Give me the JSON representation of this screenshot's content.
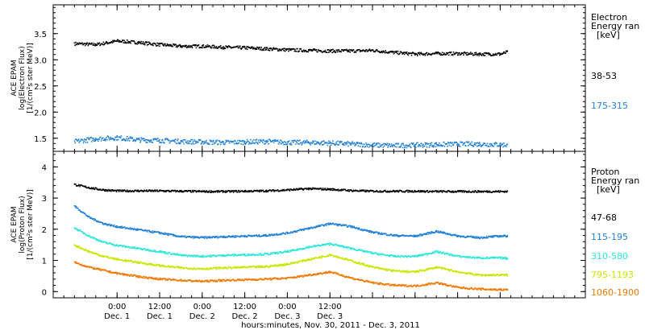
{
  "chart_data": [
    {
      "type": "scatter",
      "ylabel_lines": [
        "ACE EPAM",
        "log(Electron Flux)",
        "[1/(cm²s ster MeV)]"
      ],
      "ylim": [
        1.25,
        4.05
      ],
      "yticks": [
        1.5,
        2.0,
        2.5,
        3.0,
        3.5
      ],
      "yticklabels": [
        "1.5",
        "2.0",
        "2.5",
        "3.0",
        "3.5"
      ],
      "legend_title": [
        "Electron",
        "Energy ran",
        "[keV]"
      ],
      "series": [
        {
          "name": "38-53",
          "color": "#000000",
          "x": [
            -12,
            -6,
            0,
            6,
            12,
            18,
            24,
            30,
            36,
            42,
            48,
            54,
            60,
            66,
            72,
            78,
            84,
            90,
            96,
            102,
            108,
            110
          ],
          "y": [
            3.32,
            3.3,
            3.37,
            3.34,
            3.3,
            3.27,
            3.27,
            3.25,
            3.24,
            3.22,
            3.2,
            3.19,
            3.18,
            3.18,
            3.19,
            3.15,
            3.12,
            3.13,
            3.13,
            3.12,
            3.12,
            3.16
          ]
        },
        {
          "name": "175-315",
          "color": "#1f7fd6",
          "x": [
            -12,
            -6,
            0,
            6,
            12,
            18,
            24,
            30,
            36,
            42,
            48,
            54,
            60,
            66,
            72,
            78,
            84,
            90,
            96,
            102,
            108,
            110
          ],
          "y": [
            1.45,
            1.5,
            1.52,
            1.48,
            1.47,
            1.45,
            1.44,
            1.43,
            1.44,
            1.45,
            1.43,
            1.43,
            1.42,
            1.4,
            1.38,
            1.37,
            1.38,
            1.39,
            1.4,
            1.4,
            1.39,
            1.38
          ]
        }
      ]
    },
    {
      "type": "scatter",
      "ylabel_lines": [
        "ACE EPAM",
        "log(Proton Flux)",
        "[1/(cm²s ster MeV)]"
      ],
      "ylim": [
        -0.2,
        4.5
      ],
      "yticks": [
        0,
        1,
        2,
        3,
        4
      ],
      "yticklabels": [
        "0",
        "1",
        "2",
        "3",
        "4"
      ],
      "legend_title": [
        "Proton",
        "Energy ran",
        "[keV]"
      ],
      "series": [
        {
          "name": "47-68",
          "color": "#000000",
          "x": [
            -12,
            -8,
            -4,
            0,
            6,
            12,
            18,
            24,
            30,
            36,
            42,
            48,
            54,
            60,
            66,
            72,
            78,
            84,
            90,
            96,
            102,
            108,
            110
          ],
          "y": [
            3.45,
            3.35,
            3.28,
            3.25,
            3.25,
            3.25,
            3.24,
            3.23,
            3.23,
            3.24,
            3.25,
            3.28,
            3.32,
            3.3,
            3.26,
            3.24,
            3.24,
            3.24,
            3.23,
            3.23,
            3.23,
            3.23,
            3.23
          ]
        },
        {
          "name": "115-195",
          "color": "#1f7fd6",
          "x": [
            -12,
            -8,
            -4,
            0,
            6,
            12,
            18,
            24,
            30,
            36,
            42,
            48,
            54,
            60,
            66,
            72,
            78,
            84,
            90,
            96,
            102,
            108,
            110
          ],
          "y": [
            2.75,
            2.4,
            2.2,
            2.1,
            2.0,
            1.9,
            1.78,
            1.75,
            1.78,
            1.8,
            1.82,
            1.9,
            2.05,
            2.2,
            2.1,
            1.92,
            1.82,
            1.8,
            1.95,
            1.8,
            1.75,
            1.8,
            1.8
          ]
        },
        {
          "name": "310-580",
          "color": "#2ee6d8",
          "x": [
            -12,
            -8,
            -4,
            0,
            6,
            12,
            18,
            24,
            30,
            36,
            42,
            48,
            54,
            60,
            66,
            72,
            78,
            84,
            90,
            96,
            102,
            108,
            110
          ],
          "y": [
            2.05,
            1.8,
            1.6,
            1.5,
            1.4,
            1.3,
            1.18,
            1.15,
            1.18,
            1.2,
            1.22,
            1.3,
            1.45,
            1.55,
            1.4,
            1.25,
            1.15,
            1.15,
            1.3,
            1.15,
            1.1,
            1.1,
            1.08
          ]
        },
        {
          "name": "795-1193",
          "color": "#c8e600",
          "x": [
            -12,
            -8,
            -4,
            0,
            6,
            12,
            18,
            24,
            30,
            36,
            42,
            48,
            54,
            60,
            66,
            72,
            78,
            84,
            90,
            96,
            102,
            108,
            110
          ],
          "y": [
            1.5,
            1.3,
            1.15,
            1.05,
            0.95,
            0.85,
            0.78,
            0.75,
            0.78,
            0.8,
            0.82,
            0.9,
            1.05,
            1.2,
            1.0,
            0.8,
            0.68,
            0.65,
            0.8,
            0.65,
            0.55,
            0.55,
            0.55
          ]
        },
        {
          "name": "1060-1900",
          "color": "#f07800",
          "x": [
            -12,
            -8,
            -4,
            0,
            6,
            12,
            18,
            24,
            30,
            36,
            42,
            48,
            54,
            60,
            66,
            72,
            78,
            84,
            90,
            96,
            102,
            108,
            110
          ],
          "y": [
            0.95,
            0.8,
            0.7,
            0.6,
            0.5,
            0.42,
            0.38,
            0.35,
            0.38,
            0.4,
            0.42,
            0.45,
            0.55,
            0.65,
            0.45,
            0.3,
            0.22,
            0.2,
            0.3,
            0.15,
            0.1,
            0.08,
            0.08
          ]
        }
      ]
    }
  ],
  "x_axis": {
    "range_hours": [
      -18,
      132
    ],
    "major_ticks": [
      0,
      12,
      24,
      36,
      48,
      60,
      72,
      84,
      96,
      108
    ],
    "time_labels": [
      "0:00",
      "12:00",
      "0:00",
      "12:00",
      "0:00",
      "12:00"
    ],
    "time_label_hours": [
      0,
      12,
      24,
      36,
      48,
      60
    ],
    "date_labels": [
      "Dec. 1",
      "Dec. 1",
      "Dec. 2",
      "Dec. 2",
      "Dec. 3",
      "Dec. 3"
    ],
    "title": "hours:minutes, Nov. 30, 2011 - Dec. 3, 2011"
  }
}
